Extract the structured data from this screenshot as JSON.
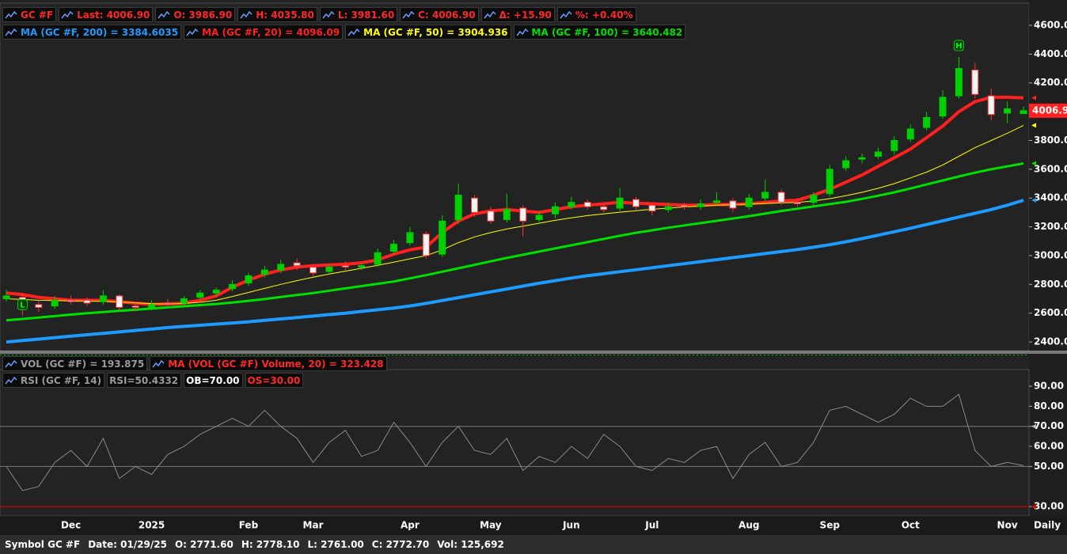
{
  "header": {
    "quote": [
      "GC #F",
      "Last: 4006.90",
      "O: 3986.90",
      "H: 4035.80",
      "L: 3981.60",
      "C: 4006.90",
      "Δ: +15.90",
      "%: +0.40%"
    ],
    "quote_color": "#ff2828"
  },
  "volume_legend": [
    {
      "text": "VOL (GC #F) = 193.875",
      "color": "#9a9a9a"
    },
    {
      "text": "MA (VOL (GC #F) Volume, 20) = 323.428",
      "color": "#ff2828"
    }
  ],
  "status_bar": [
    "Symbol GC #F",
    "Date: 01/29/25",
    "O: 2771.60",
    "H: 2778.10",
    "L: 2761.00",
    "C: 2772.70",
    "Vol: 125,692"
  ],
  "chart_data": [
    {
      "type": "candlestick",
      "up_color": "#00d000",
      "down_color": "#ff3030",
      "open": [
        2700,
        2710,
        2660,
        2650,
        2690,
        2690,
        2680,
        2720,
        2650,
        2640,
        2670,
        2670,
        2710,
        2740,
        2770,
        2810,
        2870,
        2900,
        2950,
        2920,
        2890,
        2930,
        2920,
        2940,
        3030,
        3090,
        3150,
        3010,
        3250,
        3400,
        3310,
        3250,
        3330,
        3250,
        3290,
        3340,
        3370,
        3340,
        3330,
        3390,
        3350,
        3320,
        3350,
        3340,
        3370,
        3380,
        3340,
        3400,
        3440,
        3370,
        3370,
        3430,
        3610,
        3670,
        3690,
        3730,
        3810,
        3890,
        3970,
        4110,
        4290,
        4110,
        3990,
        3986.9
      ],
      "high": [
        2760,
        2740,
        2690,
        2720,
        2720,
        2710,
        2760,
        2730,
        2680,
        2690,
        2700,
        2720,
        2760,
        2780,
        2830,
        2880,
        2930,
        2970,
        2980,
        2940,
        2940,
        2960,
        2950,
        3050,
        3110,
        3200,
        3170,
        3280,
        3500,
        3420,
        3340,
        3430,
        3350,
        3310,
        3370,
        3410,
        3390,
        3360,
        3470,
        3410,
        3360,
        3370,
        3370,
        3390,
        3440,
        3400,
        3430,
        3530,
        3460,
        3400,
        3440,
        3630,
        3690,
        3710,
        3750,
        3830,
        3910,
        4000,
        4150,
        4380,
        4340,
        4160,
        4070,
        4035.8
      ],
      "low": [
        2680,
        2580,
        2610,
        2630,
        2660,
        2650,
        2660,
        2620,
        2610,
        2620,
        2640,
        2650,
        2690,
        2720,
        2750,
        2790,
        2850,
        2880,
        2900,
        2860,
        2870,
        2900,
        2900,
        2920,
        3010,
        3070,
        2980,
        2990,
        3220,
        3270,
        3220,
        3230,
        3130,
        3220,
        3260,
        3320,
        3320,
        3300,
        3310,
        3320,
        3280,
        3300,
        3320,
        3320,
        3350,
        3300,
        3320,
        3380,
        3350,
        3340,
        3350,
        3410,
        3590,
        3640,
        3670,
        3700,
        3790,
        3870,
        3950,
        4090,
        4090,
        3940,
        3920,
        3981.6
      ],
      "close": [
        2720,
        2650,
        2640,
        2690,
        2680,
        2670,
        2720,
        2640,
        2640,
        2660,
        2660,
        2700,
        2740,
        2760,
        2800,
        2860,
        2900,
        2940,
        2930,
        2880,
        2920,
        2920,
        2930,
        3020,
        3080,
        3160,
        3000,
        3240,
        3420,
        3300,
        3240,
        3320,
        3240,
        3280,
        3340,
        3370,
        3340,
        3320,
        3400,
        3340,
        3310,
        3340,
        3340,
        3360,
        3380,
        3330,
        3400,
        3440,
        3370,
        3360,
        3420,
        3600,
        3660,
        3680,
        3720,
        3800,
        3880,
        3960,
        4100,
        4300,
        4120,
        3980,
        4020,
        4006.9
      ],
      "series": [
        {
          "name": "MA (GC #F, 200) = 3384.6035",
          "color": "#1e9bff",
          "line_width": 4,
          "values": [
            2400,
            2410,
            2420,
            2430,
            2440,
            2450,
            2460,
            2470,
            2480,
            2490,
            2500,
            2508,
            2516,
            2524,
            2532,
            2540,
            2550,
            2560,
            2570,
            2580,
            2590,
            2600,
            2612,
            2624,
            2636,
            2650,
            2668,
            2688,
            2708,
            2728,
            2748,
            2768,
            2788,
            2808,
            2826,
            2844,
            2860,
            2874,
            2888,
            2902,
            2916,
            2930,
            2944,
            2958,
            2972,
            2986,
            3000,
            3014,
            3028,
            3042,
            3058,
            3076,
            3096,
            3118,
            3142,
            3166,
            3190,
            3216,
            3242,
            3268,
            3294,
            3320,
            3350,
            3384.6035
          ]
        },
        {
          "name": "MA (GC #F, 20) = 4096.09",
          "color": "#ff2020",
          "line_width": 4,
          "values": [
            2740,
            2730,
            2710,
            2700,
            2690,
            2690,
            2690,
            2680,
            2670,
            2660,
            2665,
            2670,
            2690,
            2720,
            2780,
            2830,
            2870,
            2900,
            2920,
            2930,
            2935,
            2940,
            2950,
            2970,
            3010,
            3040,
            3060,
            3160,
            3240,
            3290,
            3310,
            3320,
            3310,
            3300,
            3320,
            3340,
            3350,
            3360,
            3370,
            3365,
            3360,
            3355,
            3350,
            3350,
            3355,
            3355,
            3360,
            3370,
            3380,
            3385,
            3420,
            3460,
            3510,
            3560,
            3620,
            3680,
            3740,
            3820,
            3900,
            4000,
            4070,
            4100,
            4100,
            4096.09
          ]
        },
        {
          "name": "MA (GC #F, 50) = 3904.936",
          "color": "#ffff00",
          "line_width": 1,
          "values": [
            2700,
            2695,
            2690,
            2688,
            2686,
            2684,
            2682,
            2678,
            2672,
            2666,
            2664,
            2668,
            2676,
            2690,
            2716,
            2744,
            2772,
            2800,
            2826,
            2850,
            2872,
            2892,
            2912,
            2932,
            2954,
            2978,
            3000,
            3040,
            3090,
            3130,
            3160,
            3185,
            3205,
            3225,
            3245,
            3262,
            3278,
            3290,
            3302,
            3312,
            3322,
            3330,
            3338,
            3344,
            3350,
            3354,
            3358,
            3362,
            3366,
            3370,
            3380,
            3396,
            3416,
            3440,
            3468,
            3500,
            3540,
            3580,
            3630,
            3690,
            3750,
            3800,
            3850,
            3904.936
          ]
        },
        {
          "name": "MA (GC #F, 100) = 3640.482",
          "color": "#00e000",
          "line_width": 3,
          "values": [
            2550,
            2560,
            2570,
            2580,
            2590,
            2600,
            2608,
            2616,
            2624,
            2632,
            2640,
            2648,
            2656,
            2664,
            2674,
            2686,
            2698,
            2712,
            2726,
            2740,
            2756,
            2772,
            2788,
            2804,
            2820,
            2842,
            2864,
            2888,
            2912,
            2936,
            2960,
            2984,
            3006,
            3028,
            3050,
            3072,
            3094,
            3116,
            3138,
            3158,
            3176,
            3194,
            3210,
            3226,
            3242,
            3258,
            3274,
            3292,
            3310,
            3326,
            3342,
            3358,
            3374,
            3394,
            3416,
            3440,
            3466,
            3494,
            3522,
            3550,
            3576,
            3600,
            3620,
            3640.482
          ]
        }
      ],
      "ylim": [
        2340,
        4754
      ],
      "yticks": [
        {
          "value": 2400,
          "label": "2400.0"
        },
        {
          "value": 2600,
          "label": "2600.0"
        },
        {
          "value": 2800,
          "label": "2800.0"
        },
        {
          "value": 3000,
          "label": "3000.0"
        },
        {
          "value": 3200,
          "label": "3200.0"
        },
        {
          "value": 3400,
          "label": "3400.0"
        },
        {
          "value": 3600,
          "label": "3600.0"
        },
        {
          "value": 3800,
          "label": "3800.0"
        },
        {
          "value": 4000,
          "label": "4000.0"
        },
        {
          "value": 4200,
          "label": "4200.0"
        },
        {
          "value": 4400,
          "label": "4400.0"
        },
        {
          "value": 4600,
          "label": "4600.0"
        }
      ],
      "last_label": "4006.9",
      "high_marker": "H",
      "low_marker": "L"
    },
    {
      "type": "line",
      "legend": [
        "RSI (GC #F, 14)",
        "RSI=50.4332",
        "OB=70.00",
        "OS=30.00"
      ],
      "legend_colors": [
        "#9a9a9a",
        "#9a9a9a",
        "#ffffff",
        "#ff2828"
      ],
      "color": "#8a8a8a",
      "values": [
        50,
        38,
        40,
        52,
        58,
        50,
        64,
        44,
        50,
        46,
        56,
        60,
        66,
        70,
        74,
        70,
        78,
        70,
        64,
        52,
        62,
        68,
        55,
        58,
        72,
        62,
        50,
        62,
        70,
        58,
        56,
        64,
        48,
        55,
        52,
        60,
        54,
        66,
        60,
        50,
        48,
        54,
        52,
        58,
        60,
        44,
        56,
        62,
        50,
        52,
        62,
        78,
        80,
        76,
        72,
        76,
        84,
        80,
        80,
        86,
        58,
        50,
        52,
        50.4332
      ],
      "categories": [
        null,
        null,
        null,
        null,
        "Dec",
        null,
        null,
        null,
        null,
        "2025",
        null,
        null,
        null,
        null,
        null,
        "Feb",
        null,
        null,
        null,
        "Mar",
        null,
        null,
        null,
        null,
        null,
        "Apr",
        null,
        null,
        null,
        null,
        "May",
        null,
        null,
        null,
        null,
        "Jun",
        null,
        null,
        null,
        null,
        "Jul",
        null,
        null,
        null,
        null,
        null,
        "Aug",
        null,
        null,
        null,
        null,
        "Sep",
        null,
        null,
        null,
        null,
        "Oct",
        null,
        null,
        null,
        null,
        null,
        "Nov",
        null
      ],
      "x_label": "Daily",
      "overbought": 70,
      "oversold": 30,
      "midline": 50,
      "ylim": [
        25.3,
        97.9
      ],
      "yticks": [
        {
          "value": 30,
          "label": "30.00"
        },
        {
          "value": 50,
          "label": "50.00"
        },
        {
          "value": 60,
          "label": "60.00"
        },
        {
          "value": 70,
          "label": "70.00"
        },
        {
          "value": 80,
          "label": "80.00"
        },
        {
          "value": 90,
          "label": "90.00"
        }
      ]
    }
  ]
}
